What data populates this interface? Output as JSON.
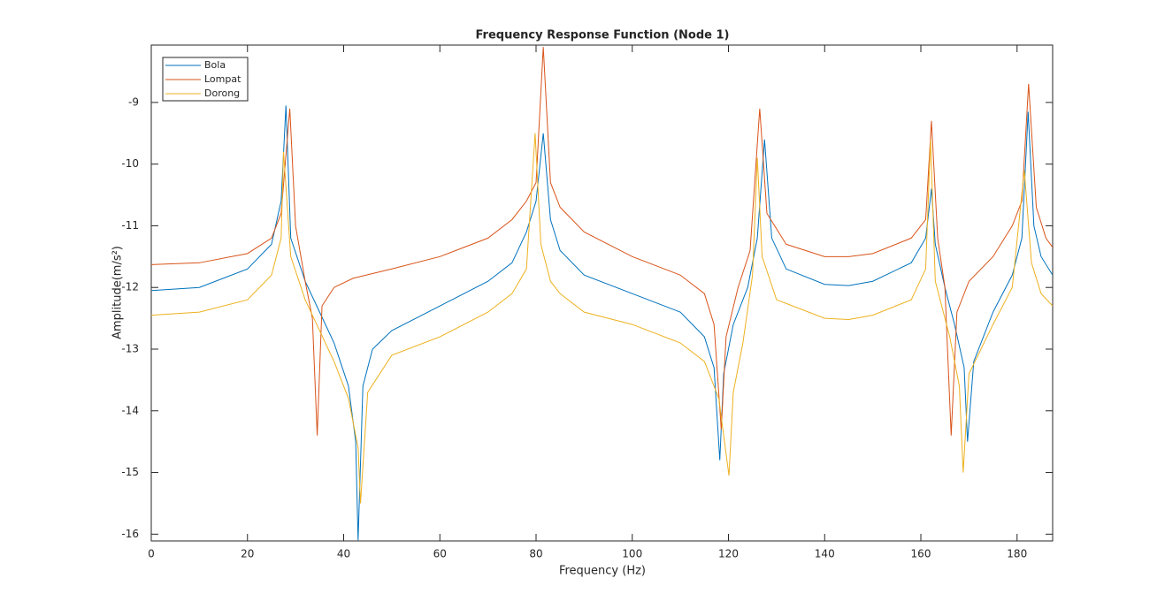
{
  "chart_data": {
    "type": "line",
    "title": "Frequency Response Function (Node 1)",
    "xlabel": "Frequency (Hz)",
    "ylabel": "Amplitude(m/s²)",
    "xlim": [
      0,
      187.4
    ],
    "ylim": [
      -16.11,
      -8.07
    ],
    "xticks": [
      0,
      20,
      40,
      60,
      80,
      100,
      120,
      140,
      160,
      180
    ],
    "yticks": [
      -16,
      -15,
      -14,
      -13,
      -12,
      -11,
      -10,
      -9
    ],
    "legend": "upper left",
    "grid": false,
    "series": [
      {
        "name": "Bola",
        "color": "#0072BD",
        "x": [
          0,
          10,
          20,
          25,
          27,
          28,
          29,
          32,
          35,
          38,
          41,
          42.5,
          43,
          44,
          46,
          50,
          60,
          70,
          75,
          78,
          80,
          81.5,
          83,
          85,
          90,
          100,
          110,
          115,
          117,
          118.2,
          119,
          121,
          124,
          126,
          127.5,
          129,
          132,
          140,
          145,
          150,
          158,
          161,
          162.2,
          163,
          165,
          167,
          169,
          169.7,
          171,
          175,
          179,
          181,
          182.3,
          183.5,
          185,
          187.4
        ],
        "values": [
          -12.05,
          -12.0,
          -11.7,
          -11.3,
          -10.6,
          -9.05,
          -11.2,
          -11.9,
          -12.4,
          -12.9,
          -13.6,
          -14.5,
          -16.1,
          -13.6,
          -13.0,
          -12.7,
          -12.3,
          -11.9,
          -11.6,
          -11.1,
          -10.6,
          -9.5,
          -10.9,
          -11.4,
          -11.8,
          -12.1,
          -12.4,
          -12.8,
          -13.3,
          -14.8,
          -13.4,
          -12.6,
          -12.0,
          -11.2,
          -9.6,
          -11.2,
          -11.7,
          -11.95,
          -11.97,
          -11.9,
          -11.6,
          -11.2,
          -10.4,
          -11.3,
          -12.0,
          -12.6,
          -13.3,
          -14.5,
          -13.2,
          -12.4,
          -11.8,
          -11.2,
          -9.15,
          -11.0,
          -11.5,
          -11.8
        ]
      },
      {
        "name": "Lompat",
        "color": "#D95319",
        "x": [
          0,
          10,
          20,
          25,
          27,
          28.8,
          30,
          32,
          33.5,
          34.5,
          35.5,
          38,
          42,
          50,
          60,
          70,
          75,
          78,
          80,
          81.5,
          83,
          85,
          90,
          100,
          110,
          115,
          117,
          118.5,
          119.5,
          122,
          124.5,
          126.5,
          128,
          132,
          140,
          145,
          150,
          158,
          161,
          162.2,
          163.5,
          165,
          166.3,
          167.5,
          170,
          175,
          179,
          181,
          182.4,
          184,
          186,
          187.4
        ],
        "values": [
          -11.63,
          -11.6,
          -11.45,
          -11.2,
          -10.8,
          -9.1,
          -11.0,
          -11.9,
          -12.5,
          -14.4,
          -12.3,
          -12.0,
          -11.85,
          -11.7,
          -11.5,
          -11.2,
          -10.9,
          -10.6,
          -10.3,
          -8.1,
          -10.3,
          -10.7,
          -11.1,
          -11.5,
          -11.8,
          -12.1,
          -12.6,
          -14.3,
          -12.8,
          -12.0,
          -11.4,
          -9.1,
          -10.8,
          -11.3,
          -11.5,
          -11.5,
          -11.45,
          -11.2,
          -10.9,
          -9.3,
          -11.2,
          -12.0,
          -14.4,
          -12.4,
          -11.9,
          -11.5,
          -11.0,
          -10.6,
          -8.7,
          -10.7,
          -11.2,
          -11.35
        ]
      },
      {
        "name": "Dorong",
        "color": "#EDB120",
        "x": [
          0,
          10,
          20,
          25,
          27,
          27.5,
          29,
          32,
          35,
          38,
          41,
          43,
          43.5,
          45,
          50,
          60,
          70,
          75,
          78,
          79.8,
          81,
          83,
          85,
          90,
          100,
          110,
          115,
          118,
          120.1,
          121,
          123,
          125,
          126,
          127,
          130,
          140,
          145,
          150,
          158,
          161,
          162,
          163,
          166,
          168,
          168.8,
          170,
          175,
          179,
          181.5,
          183,
          185,
          187.4
        ],
        "values": [
          -12.45,
          -12.4,
          -12.2,
          -11.8,
          -11.2,
          -9.8,
          -11.5,
          -12.2,
          -12.7,
          -13.2,
          -13.8,
          -14.6,
          -15.5,
          -13.7,
          -13.1,
          -12.8,
          -12.4,
          -12.1,
          -11.7,
          -9.5,
          -11.3,
          -11.9,
          -12.1,
          -12.4,
          -12.6,
          -12.9,
          -13.2,
          -13.8,
          -15.05,
          -13.7,
          -12.9,
          -11.8,
          -9.9,
          -11.5,
          -12.2,
          -12.5,
          -12.52,
          -12.45,
          -12.2,
          -11.7,
          -9.6,
          -11.9,
          -12.8,
          -13.6,
          -15.0,
          -13.4,
          -12.6,
          -12.0,
          -10.1,
          -11.6,
          -12.1,
          -12.3
        ]
      }
    ]
  }
}
